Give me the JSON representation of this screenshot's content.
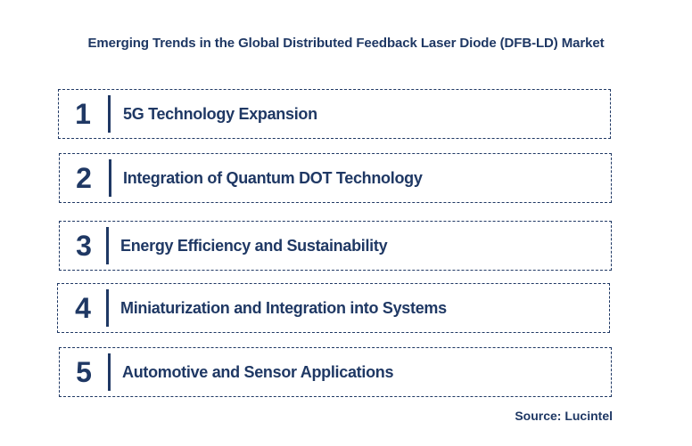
{
  "title": "Emerging Trends in the Global Distributed Feedback Laser Diode (DFB-LD) Market",
  "trends": [
    {
      "number": "1",
      "label": "5G Technology Expansion"
    },
    {
      "number": "2",
      "label": "Integration of Quantum DOT Technology"
    },
    {
      "number": "3",
      "label": "Energy Efficiency and Sustainability"
    },
    {
      "number": "4",
      "label": "Miniaturization and Integration into Systems"
    },
    {
      "number": "5",
      "label": "Automotive and Sensor Applications"
    }
  ],
  "source": "Source: Lucintel",
  "colors": {
    "primary": "#1f3864",
    "background": "#ffffff"
  }
}
